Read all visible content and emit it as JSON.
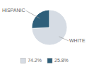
{
  "chart_data": {
    "type": "pie",
    "categories": [
      "WHITE",
      "HISPANIC"
    ],
    "values": [
      74.2,
      25.8
    ],
    "value_labels": [
      "74.2%",
      "25.8%"
    ],
    "colors": [
      "#d6dce4",
      "#2e5f7a"
    ],
    "legend": "bottom"
  }
}
